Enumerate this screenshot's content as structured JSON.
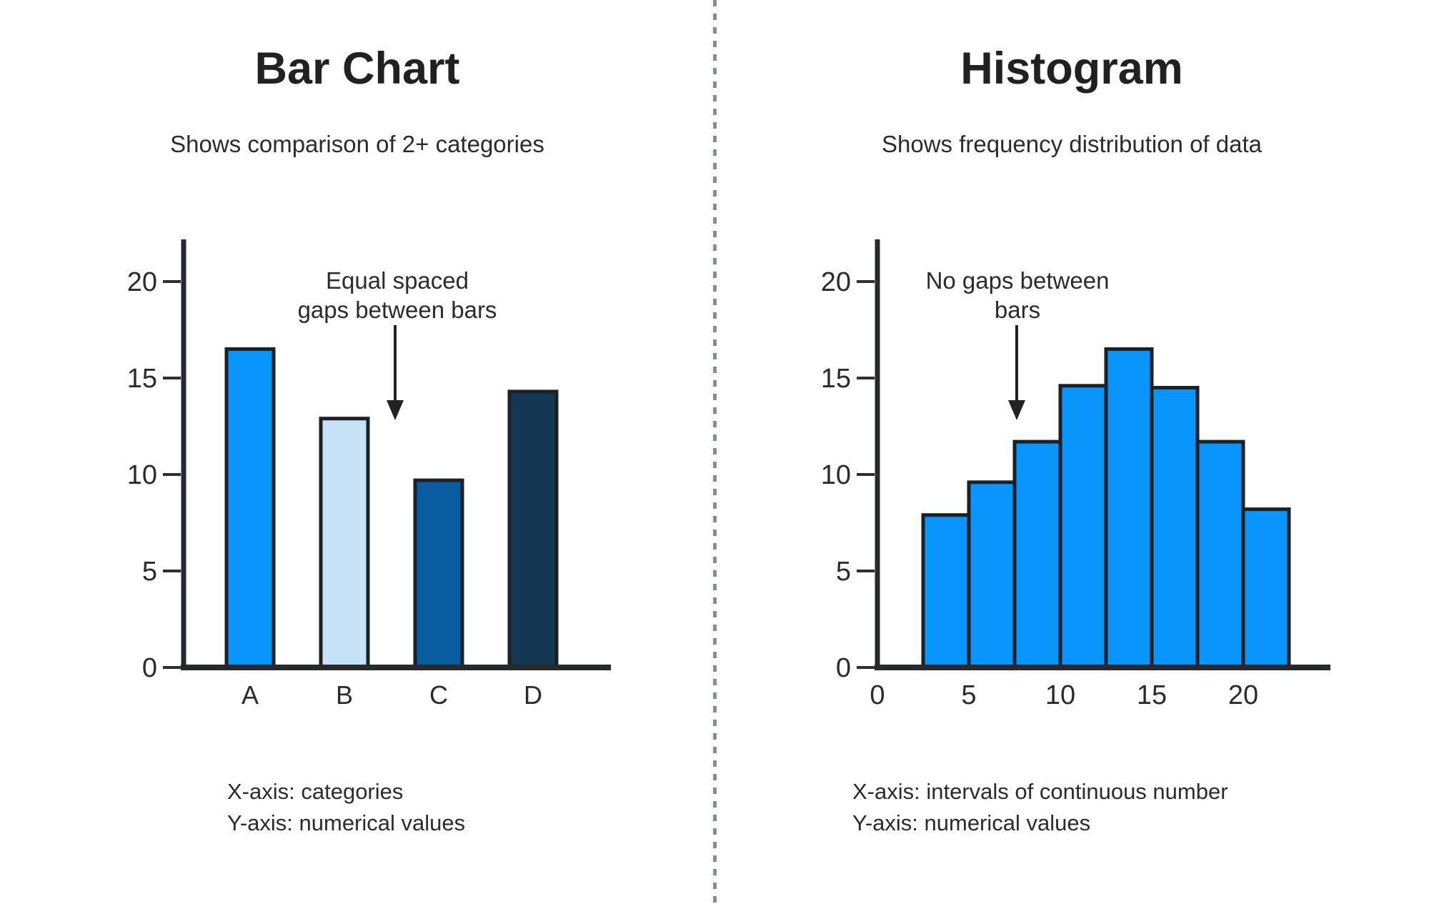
{
  "colors": {
    "background": "#ffffff",
    "axis": "#27292c",
    "tick": "#2f2f2f",
    "text": "#2b2b2b",
    "title": "#212121",
    "bar_outline": "#1b2126",
    "divider": "#878d93",
    "arrow": "#222222"
  },
  "chart_data": [
    {
      "type": "bar",
      "title": "Bar Chart",
      "subtitle": "Shows comparison of 2+ categories",
      "categories": [
        "A",
        "B",
        "C",
        "D"
      ],
      "values": [
        16.5,
        12.9,
        9.7,
        14.3
      ],
      "bar_colors": [
        "#0995fb",
        "#c5e2f6",
        "#0a5ca1",
        "#143853"
      ],
      "annotation": "Equal spaced\ngaps between bars",
      "footer": "X-axis: categories\nY-axis: numerical values",
      "xlabel": "",
      "ylabel": "",
      "ylim": [
        0,
        20
      ],
      "yticks": [
        0,
        5,
        10,
        15,
        20
      ],
      "grid": false,
      "legend": null
    },
    {
      "type": "bar",
      "variant": "histogram",
      "title": "Histogram",
      "subtitle": "Shows frequency distribution of data",
      "bin_edges": [
        2.5,
        5,
        7.5,
        10,
        12.5,
        15,
        17.5,
        20,
        22.5
      ],
      "values": [
        7.9,
        9.6,
        11.7,
        14.6,
        16.5,
        14.5,
        11.7,
        8.2
      ],
      "bar_color": "#0995fb",
      "annotation": "No gaps between\nbars",
      "footer": "X-axis: intervals of continuous number\nY-axis: numerical values",
      "xlabel": "",
      "ylabel": "",
      "xlim": [
        0,
        24.8
      ],
      "xticks": [
        0,
        5,
        10,
        15,
        20
      ],
      "ylim": [
        0,
        20
      ],
      "yticks": [
        0,
        5,
        10,
        15,
        20
      ],
      "grid": false,
      "legend": null
    }
  ]
}
